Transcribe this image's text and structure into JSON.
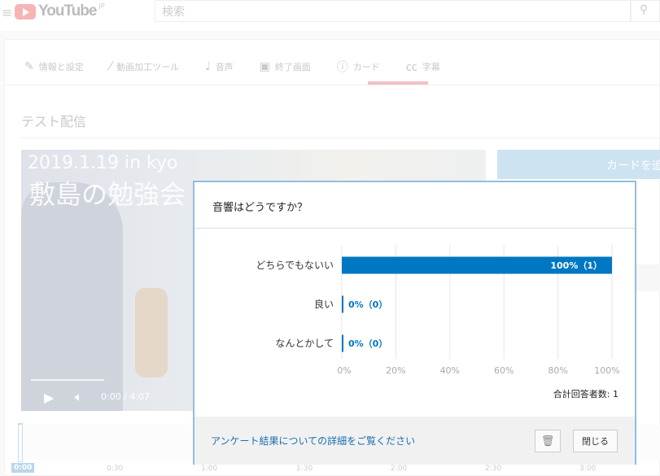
{
  "header": {
    "logo_text": "YouTube",
    "logo_region": "JP",
    "search_placeholder": "検索"
  },
  "tabs": [
    {
      "label": "情報と設定",
      "icon": "pencil-icon"
    },
    {
      "label": "動画加工ツール",
      "icon": "magic-wand-icon"
    },
    {
      "label": "音声",
      "icon": "music-note-icon"
    },
    {
      "label": "終了画面",
      "icon": "end-screen-icon"
    },
    {
      "label": "カード",
      "icon": "info-icon",
      "active": true
    },
    {
      "label": "字幕",
      "icon": "cc-icon"
    }
  ],
  "video": {
    "title": "テスト配信",
    "overlay_line1": "2019.1.19 in kyo",
    "overlay_line2": "敷島の勉強会",
    "time": "0:00 / 4:07"
  },
  "add_card_label": "カードを追",
  "timeline": {
    "current": "0:00",
    "ticks": [
      "0:30",
      "1:00",
      "1:30",
      "2:00",
      "2:30",
      "3:00"
    ]
  },
  "modal": {
    "title": "音響はどうですか？",
    "total_label": "合計回答者数: 1",
    "details_link": "アンケート結果についての詳細をご覧ください",
    "close_label": "閉じる",
    "accent": "#0077c2"
  },
  "chart_data": {
    "type": "bar",
    "orientation": "horizontal",
    "categories": [
      "どちらでもないい",
      "良い",
      "なんとかして"
    ],
    "values": [
      100,
      0,
      0
    ],
    "counts": [
      1,
      0,
      0
    ],
    "data_labels": [
      "100%（1）",
      "0%（0）",
      "0%（0）"
    ],
    "xlim": [
      0,
      100
    ],
    "xticks": [
      "0%",
      "20%",
      "40%",
      "60%",
      "80%",
      "100%"
    ],
    "grid": true
  }
}
